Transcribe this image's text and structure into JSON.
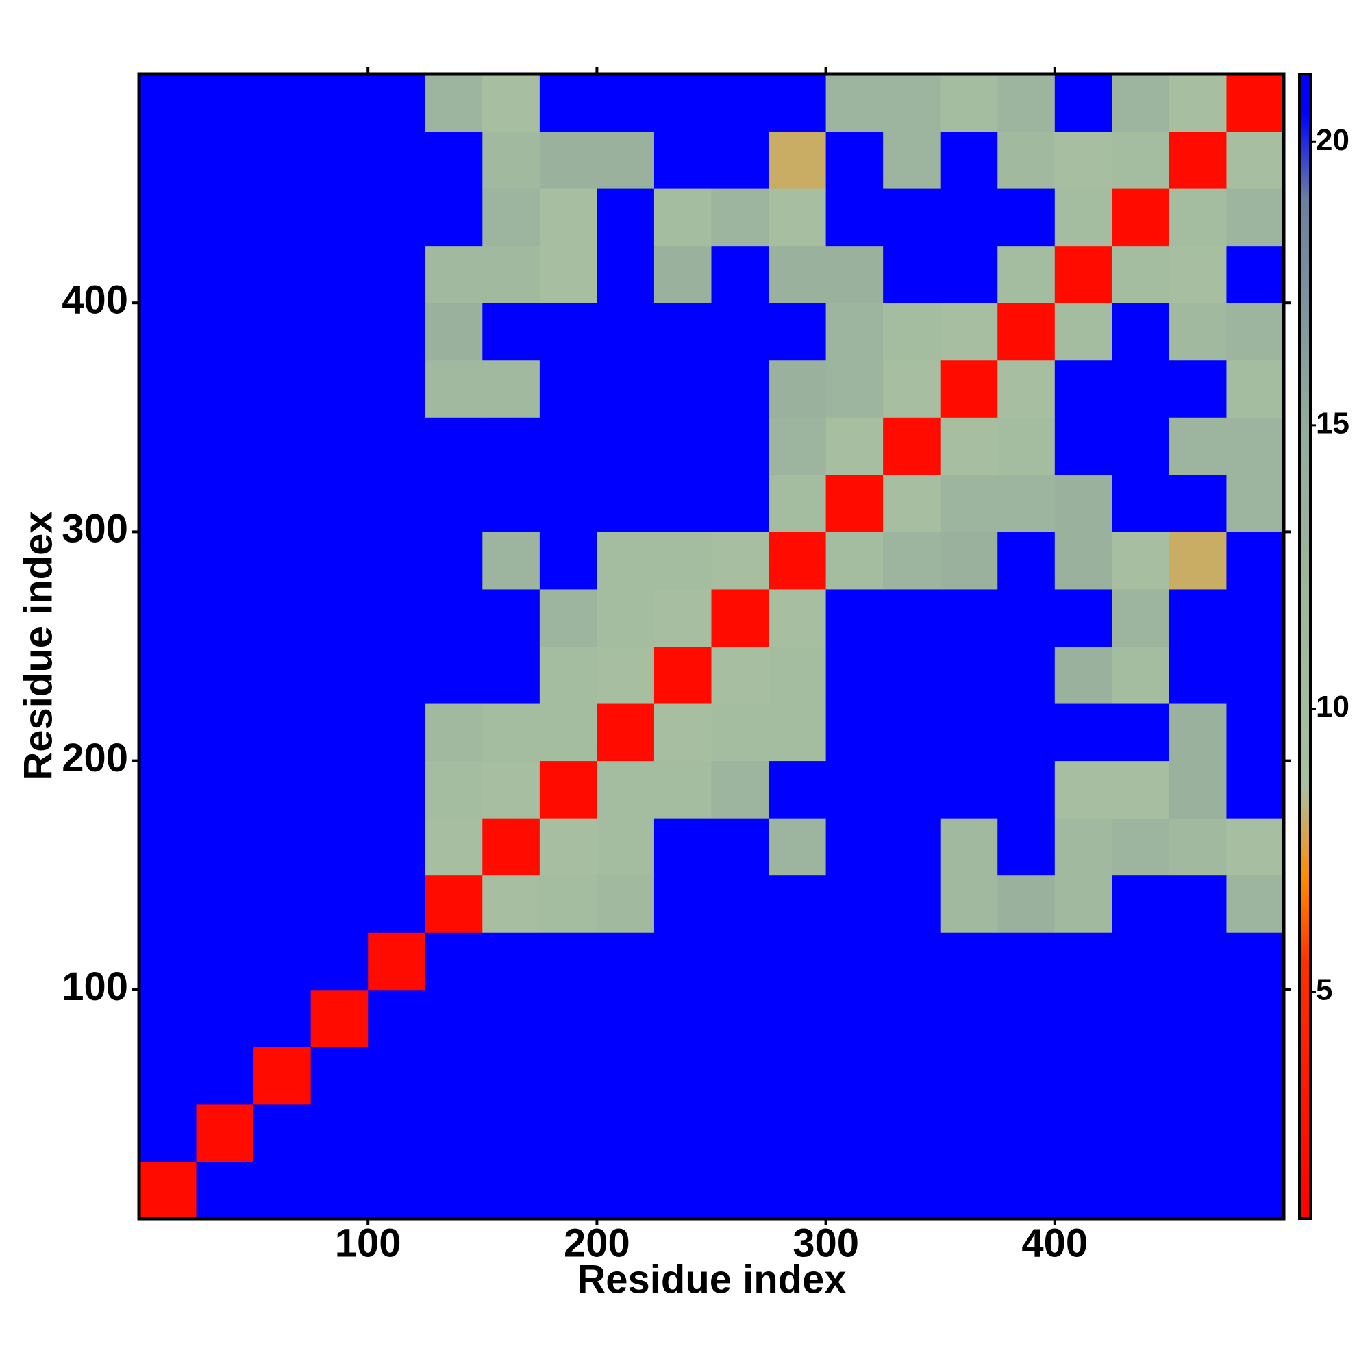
{
  "chart_data": {
    "type": "heatmap",
    "xlabel": "Residue index",
    "ylabel": "Residue index",
    "xbins": [
      0,
      25,
      50,
      75,
      100,
      125,
      150,
      175,
      200,
      225,
      250,
      275,
      300,
      325,
      350,
      375,
      400,
      425,
      450,
      475,
      500
    ],
    "ybins": [
      0,
      25,
      50,
      75,
      100,
      125,
      150,
      175,
      200,
      225,
      250,
      275,
      300,
      325,
      350,
      375,
      400,
      425,
      450,
      475,
      500
    ],
    "z": [
      [
        2,
        21,
        21,
        21,
        21,
        21,
        21,
        21,
        21,
        21,
        21,
        21,
        21,
        21,
        21,
        21,
        21,
        21,
        21,
        21
      ],
      [
        21,
        2,
        21,
        21,
        21,
        21,
        21,
        21,
        21,
        21,
        21,
        21,
        21,
        21,
        21,
        21,
        21,
        21,
        21,
        21
      ],
      [
        21,
        21,
        2,
        21,
        21,
        21,
        21,
        21,
        21,
        21,
        21,
        21,
        21,
        21,
        21,
        21,
        21,
        21,
        21,
        21
      ],
      [
        21,
        21,
        21,
        2,
        21,
        21,
        21,
        21,
        21,
        21,
        21,
        21,
        21,
        21,
        21,
        21,
        21,
        21,
        21,
        21
      ],
      [
        21,
        21,
        21,
        21,
        2,
        21,
        21,
        21,
        21,
        21,
        21,
        21,
        21,
        21,
        21,
        21,
        21,
        21,
        21,
        21
      ],
      [
        21,
        21,
        21,
        21,
        21,
        2,
        9,
        10,
        11,
        21,
        21,
        21,
        21,
        21,
        11,
        13,
        11,
        21,
        21,
        12
      ],
      [
        21,
        21,
        21,
        21,
        21,
        9,
        2,
        9,
        10,
        21,
        21,
        12,
        21,
        21,
        11,
        21,
        11,
        12,
        11,
        9
      ],
      [
        21,
        21,
        21,
        21,
        21,
        10,
        9,
        2,
        10,
        10,
        12,
        21,
        21,
        21,
        21,
        21,
        9,
        9,
        13,
        21
      ],
      [
        21,
        21,
        21,
        21,
        21,
        11,
        10,
        10,
        2,
        9,
        10,
        10,
        21,
        21,
        21,
        21,
        21,
        21,
        13,
        21
      ],
      [
        21,
        21,
        21,
        21,
        21,
        21,
        21,
        10,
        9,
        2,
        9,
        10,
        21,
        21,
        21,
        21,
        13,
        10,
        21,
        21
      ],
      [
        21,
        21,
        21,
        21,
        21,
        21,
        21,
        12,
        10,
        9,
        2,
        9,
        21,
        21,
        21,
        21,
        21,
        12,
        21,
        21
      ],
      [
        21,
        21,
        21,
        21,
        21,
        21,
        12,
        21,
        10,
        10,
        9,
        2,
        10,
        12,
        13,
        21,
        13,
        9,
        8,
        21
      ],
      [
        21,
        21,
        21,
        21,
        21,
        21,
        21,
        21,
        21,
        21,
        21,
        10,
        2,
        9,
        12,
        12,
        13,
        21,
        21,
        12
      ],
      [
        21,
        21,
        21,
        21,
        21,
        21,
        21,
        21,
        21,
        21,
        21,
        12,
        9,
        2,
        9,
        10,
        21,
        21,
        12,
        12
      ],
      [
        21,
        21,
        21,
        21,
        21,
        11,
        11,
        21,
        21,
        21,
        21,
        13,
        12,
        9,
        2,
        9,
        21,
        21,
        21,
        10
      ],
      [
        21,
        21,
        21,
        21,
        21,
        13,
        21,
        21,
        21,
        21,
        21,
        21,
        12,
        10,
        9,
        2,
        10,
        21,
        11,
        12
      ],
      [
        21,
        21,
        21,
        21,
        21,
        11,
        11,
        9,
        21,
        13,
        21,
        13,
        13,
        21,
        21,
        10,
        2,
        10,
        9,
        21
      ],
      [
        21,
        21,
        21,
        21,
        21,
        21,
        12,
        9,
        21,
        10,
        12,
        9,
        21,
        21,
        21,
        21,
        10,
        2,
        10,
        12
      ],
      [
        21,
        21,
        21,
        21,
        21,
        21,
        11,
        13,
        13,
        21,
        21,
        8,
        21,
        12,
        21,
        11,
        9,
        10,
        2,
        9
      ],
      [
        21,
        21,
        21,
        21,
        21,
        12,
        9,
        21,
        21,
        21,
        21,
        21,
        12,
        12,
        10,
        12,
        21,
        12,
        9,
        2
      ]
    ],
    "xlim": [
      0,
      500
    ],
    "ylim": [
      0,
      500
    ],
    "xticks": [
      100,
      200,
      300,
      400
    ],
    "yticks": [
      100,
      200,
      300,
      400
    ],
    "zlim": [
      1,
      21.2
    ],
    "zticks": [
      5,
      10,
      15,
      20
    ],
    "colorscale": [
      [
        1,
        "#ff0000"
      ],
      [
        5.5,
        "#ff3000"
      ],
      [
        7,
        "#ff8c00"
      ],
      [
        8.6,
        "#a8c0a0"
      ],
      [
        15,
        "#94ac9c"
      ],
      [
        19,
        "#6a7fa0"
      ],
      [
        20.5,
        "#0000ff"
      ],
      [
        21.2,
        "#0000ff"
      ]
    ],
    "grid": false
  }
}
